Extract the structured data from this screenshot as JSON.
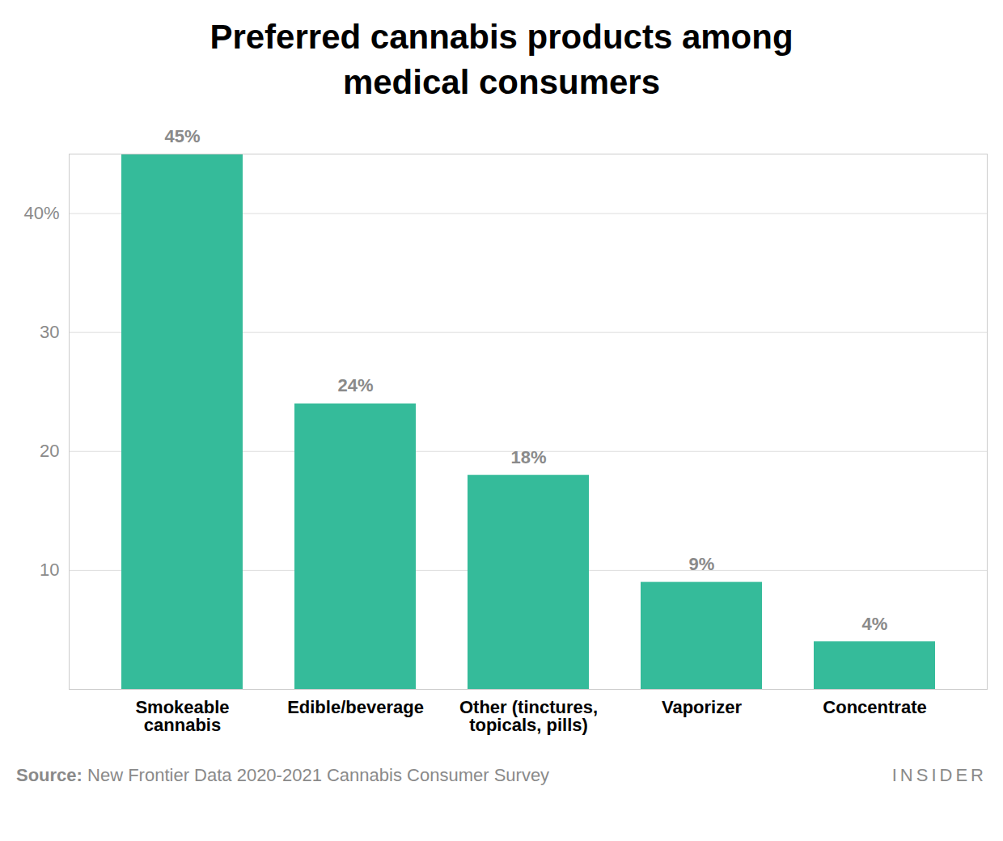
{
  "chart_data": {
    "type": "bar",
    "title": "Preferred cannabis products among medical consumers",
    "categories": [
      "Smokeable cannabis",
      "Edible/beverage",
      "Other (tinctures, topicals, pills)",
      "Vaporizer",
      "Concentrate"
    ],
    "values": [
      45,
      24,
      18,
      9,
      4
    ],
    "value_labels": [
      "45%",
      "24%",
      "18%",
      "9%",
      "4%"
    ],
    "data_labels": true,
    "color": "#35bb9a",
    "ylim": [
      0,
      45
    ],
    "yticks": [
      10,
      20,
      30,
      {
        "value": 40,
        "label": "40%"
      }
    ],
    "grid": true,
    "source_label": "Source:",
    "source": "New Frontier Data 2020-2021 Cannabis Consumer Survey",
    "credit": "INSIDER"
  }
}
